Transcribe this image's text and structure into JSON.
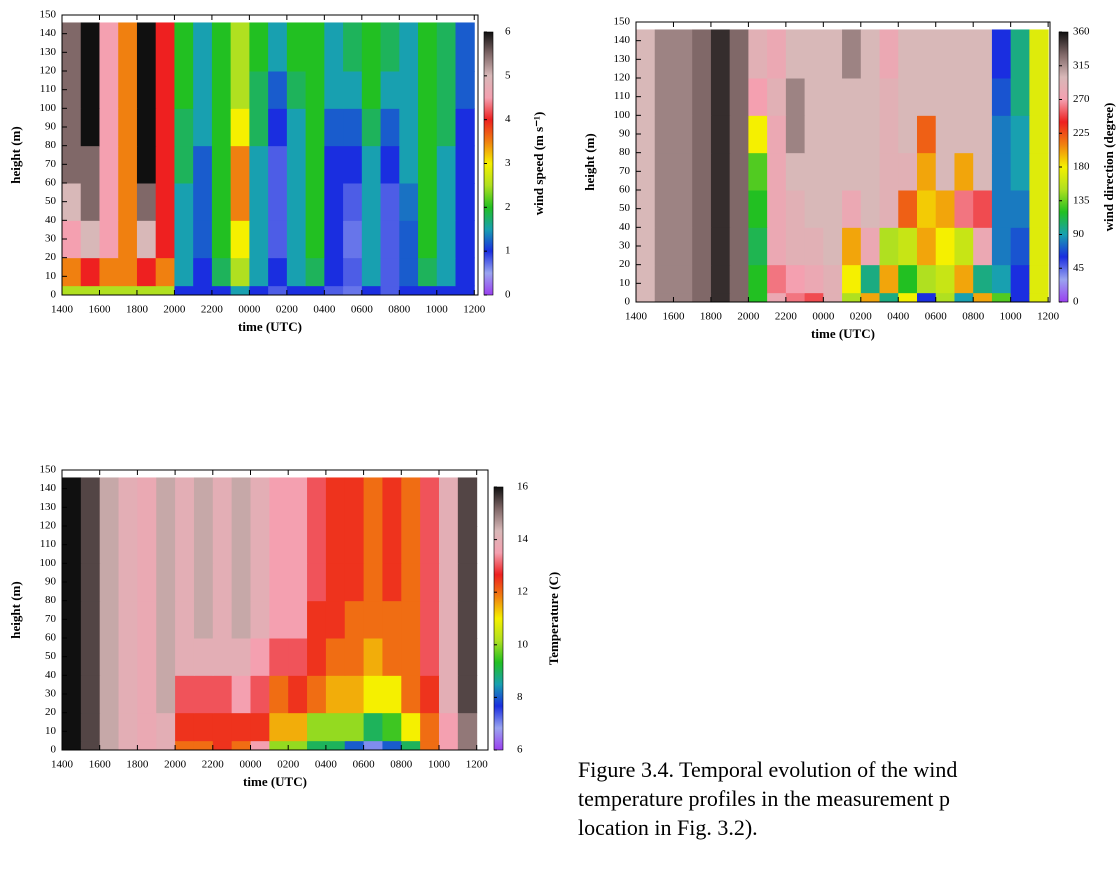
{
  "chart_data": [
    {
      "type": "heatmap",
      "x_label": "time (UTC)",
      "y_label": "height (m)",
      "colorbar_label": "wind speed (m s⁻¹)",
      "xlim": [
        0,
        22.2
      ],
      "ylim": [
        0,
        150
      ],
      "xticks": [
        {
          "value": 0,
          "label": "1400"
        },
        {
          "value": 2,
          "label": "1600"
        },
        {
          "value": 4,
          "label": "1800"
        },
        {
          "value": 6,
          "label": "2000"
        },
        {
          "value": 8,
          "label": "2200"
        },
        {
          "value": 10,
          "label": "0000"
        },
        {
          "value": 12,
          "label": "0200"
        },
        {
          "value": 14,
          "label": "0400"
        },
        {
          "value": 16,
          "label": "0600"
        },
        {
          "value": 18,
          "label": "0800"
        },
        {
          "value": 20,
          "label": "1000"
        },
        {
          "value": 22,
          "label": "1200"
        }
      ],
      "yticks": [
        0,
        10,
        20,
        30,
        40,
        50,
        60,
        70,
        80,
        90,
        100,
        110,
        120,
        130,
        140,
        150
      ],
      "clim": [
        0,
        6
      ],
      "cticks": [
        0,
        1,
        2,
        3,
        4,
        5,
        6
      ],
      "colormap": [
        "#9a40ef",
        "#9aa4f0",
        "#1a2ee0",
        "#18a0b0",
        "#22c022",
        "#b0e020",
        "#f5f000",
        "#f08010",
        "#ee2020",
        "#f4a0b0",
        "#d8b8b8",
        "#806868",
        "#101010"
      ],
      "x_edges": [
        0,
        1,
        2,
        3,
        4,
        5,
        6,
        7,
        8,
        9,
        10,
        11,
        12,
        13,
        14,
        15,
        16,
        17,
        18,
        19,
        20,
        21,
        22
      ],
      "y_edges": [
        0,
        5,
        20,
        40,
        60,
        80,
        100,
        120,
        146
      ],
      "z": [
        [
          2.5,
          2.5,
          2.5,
          2.5,
          2.5,
          2.5,
          1,
          1,
          1,
          1.5,
          1,
          0.8,
          1,
          1,
          0.8,
          0.7,
          1,
          0.8,
          1,
          1,
          1,
          1
        ],
        [
          3.5,
          4,
          3.5,
          3.5,
          4,
          3.5,
          1.5,
          1,
          1.8,
          2.5,
          1.5,
          1,
          1.5,
          1.8,
          1,
          0.8,
          1.5,
          0.8,
          1.2,
          1.8,
          1.5,
          1
        ],
        [
          4.5,
          5,
          4.5,
          3.5,
          5,
          4,
          1.5,
          1.2,
          2,
          3,
          1.5,
          0.8,
          1.5,
          2,
          1,
          0.7,
          1.5,
          0.8,
          1.2,
          2,
          1.5,
          1
        ],
        [
          5,
          5.5,
          4.5,
          3.5,
          5.5,
          4,
          1.5,
          1.2,
          2,
          3.5,
          1.5,
          0.8,
          1.5,
          2,
          1,
          0.8,
          1.5,
          0.8,
          1.3,
          2,
          1.5,
          1
        ],
        [
          5.5,
          5.5,
          4.5,
          3.5,
          6,
          4,
          1.8,
          1.2,
          2,
          3.5,
          1.5,
          0.8,
          1.5,
          2,
          1,
          1,
          1.5,
          1,
          1.5,
          2,
          1.5,
          1
        ],
        [
          5.5,
          6,
          4.5,
          3.5,
          6,
          4,
          1.8,
          1.5,
          2,
          3,
          1.8,
          1,
          1.5,
          2,
          1.2,
          1.2,
          1.8,
          1.2,
          1.5,
          2,
          1.8,
          1
        ],
        [
          5.5,
          6,
          4.5,
          3.5,
          6,
          4,
          2,
          1.5,
          2,
          2.5,
          1.8,
          1.2,
          1.8,
          2,
          1.5,
          1.5,
          2,
          1.5,
          1.5,
          2,
          1.8,
          1.2
        ],
        [
          5.5,
          6,
          4.5,
          3.5,
          6,
          4,
          2,
          1.5,
          2,
          2.5,
          2,
          1.5,
          2,
          2,
          1.5,
          1.8,
          2,
          1.8,
          1.5,
          2,
          1.8,
          1.2
        ]
      ]
    },
    {
      "type": "heatmap",
      "x_label": "time (UTC)",
      "y_label": "height (m)",
      "colorbar_label": "wind direction (degree)",
      "xlim": [
        0,
        22.1
      ],
      "ylim": [
        0,
        150
      ],
      "xticks": [
        {
          "value": 0,
          "label": "1400"
        },
        {
          "value": 2,
          "label": "1600"
        },
        {
          "value": 4,
          "label": "1800"
        },
        {
          "value": 6,
          "label": "2000"
        },
        {
          "value": 8,
          "label": "2200"
        },
        {
          "value": 10,
          "label": "0000"
        },
        {
          "value": 12,
          "label": "0200"
        },
        {
          "value": 14,
          "label": "0400"
        },
        {
          "value": 16,
          "label": "0600"
        },
        {
          "value": 18,
          "label": "0800"
        },
        {
          "value": 20,
          "label": "1000"
        },
        {
          "value": 22,
          "label": "1200"
        }
      ],
      "yticks": [
        0,
        10,
        20,
        30,
        40,
        50,
        60,
        70,
        80,
        90,
        100,
        110,
        120,
        130,
        140,
        150
      ],
      "clim": [
        0,
        360
      ],
      "cticks": [
        0,
        45,
        90,
        135,
        180,
        225,
        270,
        315,
        360
      ],
      "colormap": [
        "#9a40ef",
        "#9aa4f0",
        "#1a2ee0",
        "#18a0b0",
        "#22c022",
        "#b0e020",
        "#f5f000",
        "#f08010",
        "#ee2020",
        "#f4a0b0",
        "#d8b8b8",
        "#806868",
        "#101010"
      ],
      "x_edges": [
        0,
        1,
        2,
        3,
        4,
        5,
        6,
        7,
        8,
        9,
        10,
        11,
        12,
        13,
        14,
        15,
        16,
        17,
        18,
        19,
        20,
        21,
        22
      ],
      "y_edges": [
        0,
        5,
        20,
        40,
        60,
        80,
        100,
        120,
        146
      ],
      "z": [
        [
          300,
          320,
          320,
          330,
          350,
          330,
          120,
          280,
          260,
          250,
          290,
          150,
          200,
          100,
          180,
          60,
          150,
          90,
          200,
          130,
          60,
          170
        ],
        [
          300,
          320,
          320,
          330,
          350,
          330,
          120,
          260,
          270,
          280,
          290,
          180,
          100,
          200,
          120,
          150,
          160,
          200,
          100,
          90,
          60,
          170
        ],
        [
          300,
          320,
          320,
          330,
          350,
          330,
          110,
          280,
          290,
          290,
          300,
          200,
          280,
          150,
          160,
          200,
          180,
          160,
          280,
          80,
          70,
          170
        ],
        [
          300,
          320,
          320,
          330,
          350,
          330,
          120,
          280,
          290,
          300,
          300,
          280,
          300,
          290,
          220,
          190,
          200,
          260,
          250,
          80,
          80,
          170
        ],
        [
          300,
          320,
          320,
          330,
          350,
          330,
          130,
          280,
          300,
          300,
          300,
          300,
          300,
          290,
          290,
          200,
          300,
          200,
          300,
          80,
          90,
          170
        ],
        [
          300,
          320,
          320,
          330,
          350,
          330,
          180,
          280,
          320,
          300,
          300,
          300,
          300,
          290,
          300,
          220,
          300,
          300,
          300,
          80,
          90,
          170
        ],
        [
          300,
          320,
          320,
          330,
          350,
          330,
          270,
          290,
          320,
          300,
          300,
          300,
          300,
          290,
          300,
          300,
          300,
          300,
          300,
          70,
          100,
          170
        ],
        [
          300,
          320,
          320,
          330,
          350,
          330,
          290,
          280,
          300,
          300,
          300,
          320,
          300,
          280,
          300,
          300,
          300,
          300,
          300,
          60,
          100,
          170
        ]
      ]
    },
    {
      "type": "heatmap",
      "x_label": "time (UTC)",
      "y_label": "height (m)",
      "colorbar_label": "Temperature (C)",
      "xlim": [
        0,
        22.6
      ],
      "ylim": [
        0,
        150
      ],
      "xticks": [
        {
          "value": 0,
          "label": "1400"
        },
        {
          "value": 2,
          "label": "1600"
        },
        {
          "value": 4,
          "label": "1800"
        },
        {
          "value": 6,
          "label": "2000"
        },
        {
          "value": 8,
          "label": "2200"
        },
        {
          "value": 10,
          "label": "0000"
        },
        {
          "value": 12,
          "label": "0200"
        },
        {
          "value": 14,
          "label": "0400"
        },
        {
          "value": 16,
          "label": "0600"
        },
        {
          "value": 18,
          "label": "0800"
        },
        {
          "value": 20,
          "label": "1000"
        },
        {
          "value": 22,
          "label": "1200"
        }
      ],
      "yticks": [
        0,
        10,
        20,
        30,
        40,
        50,
        60,
        70,
        80,
        90,
        100,
        110,
        120,
        130,
        140,
        150
      ],
      "clim": [
        6,
        16
      ],
      "cticks": [
        6,
        8,
        10,
        12,
        14,
        16
      ],
      "colormap": [
        "#9a40ef",
        "#9aa4f0",
        "#1a2ee0",
        "#18a0b0",
        "#22c022",
        "#b0e020",
        "#f5f000",
        "#f08010",
        "#ee2020",
        "#f4a0b0",
        "#d8b8b8",
        "#806868",
        "#101010"
      ],
      "x_edges": [
        0,
        1,
        2,
        3,
        4,
        5,
        6,
        7,
        8,
        9,
        10,
        11,
        12,
        13,
        14,
        15,
        16,
        17,
        18,
        19,
        20,
        21,
        22
      ],
      "y_edges": [
        0,
        5,
        20,
        40,
        60,
        80,
        100,
        120,
        146
      ],
      "z": [
        [
          16,
          15.5,
          14.5,
          14,
          13.8,
          14,
          12,
          12,
          12.5,
          12,
          13.5,
          10,
          10,
          9,
          9,
          8,
          7,
          8,
          9,
          12,
          13.5,
          15
        ],
        [
          16,
          15.5,
          14.5,
          14,
          13.8,
          14,
          12.5,
          12.5,
          12.5,
          12.5,
          12.5,
          11.5,
          11.5,
          10,
          10,
          10,
          9,
          9.5,
          11,
          12,
          13.5,
          15
        ],
        [
          16,
          15.5,
          14.5,
          14,
          13.8,
          14.5,
          13,
          13,
          13,
          13.5,
          13,
          12,
          12.5,
          12,
          11.5,
          11.5,
          11,
          11,
          12,
          12.5,
          14,
          15.5
        ],
        [
          16,
          15.5,
          14.5,
          14,
          13.8,
          14.5,
          14,
          14,
          14,
          14,
          13.5,
          13,
          13,
          12.5,
          12,
          12,
          11.5,
          12,
          12,
          13,
          14,
          15.5
        ],
        [
          16,
          15.5,
          14.5,
          14,
          13.8,
          14.5,
          14,
          14.5,
          14,
          14.5,
          14,
          13.5,
          13.5,
          12.5,
          12.5,
          12,
          12,
          12,
          12,
          13,
          14,
          15.5
        ],
        [
          16,
          15.5,
          14.5,
          14,
          13.8,
          14.5,
          14,
          14.5,
          14,
          14.5,
          14,
          13.5,
          13.5,
          13,
          12.5,
          12.5,
          12,
          12.5,
          12,
          13,
          14,
          15.5
        ],
        [
          16,
          15.5,
          14.5,
          14,
          13.8,
          14.5,
          14,
          14.5,
          14,
          14.5,
          14,
          13.5,
          13.5,
          13,
          12.5,
          12.5,
          12,
          12.5,
          12,
          13,
          14,
          15.5
        ],
        [
          16,
          15.5,
          14.5,
          14,
          13.8,
          14.5,
          14,
          14.5,
          14,
          14.5,
          14,
          13.5,
          13.5,
          13,
          12.5,
          12.5,
          12,
          12.5,
          12,
          13,
          14,
          15.5
        ]
      ]
    }
  ],
  "caption": [
    "Figure 3.4. Temporal evolution of the wind",
    "temperature profiles in the measurement p",
    "location in Fig. 3.2)."
  ]
}
